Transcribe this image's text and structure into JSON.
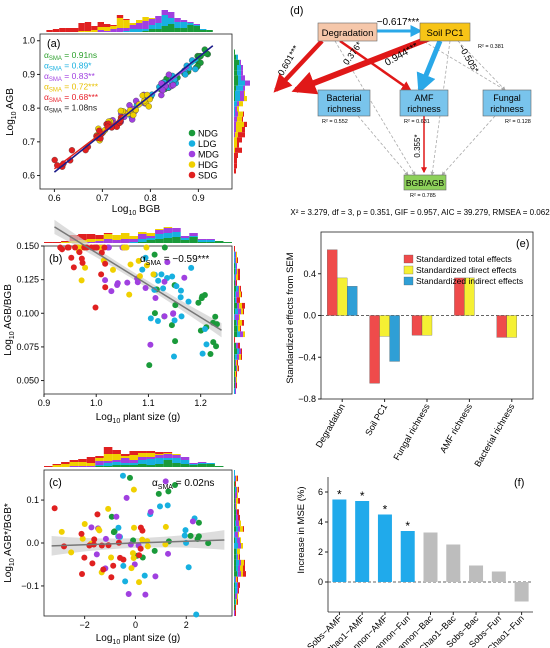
{
  "panels": {
    "a": {
      "label": "(a)",
      "xlabel_base": "Log",
      "xlabel_sub": "10",
      "xlabel_rest": " BGB",
      "ylabel_base": "Log",
      "ylabel_sub": "10",
      "ylabel_rest": " AGB",
      "xticks": [
        "0.6",
        "0.7",
        "0.8",
        "0.9"
      ],
      "yticks": [
        "0.6",
        "0.7",
        "0.8",
        "0.9",
        "1.0"
      ],
      "alphas": [
        {
          "sym": "α",
          "sub": "SMA",
          "text": " = 0.91ns",
          "color": "#2ca02c"
        },
        {
          "sym": "α",
          "sub": "SMA",
          "text": " = 0.89*",
          "color": "#17b0e0"
        },
        {
          "sym": "α",
          "sub": "SMA",
          "text": " = 0.83**",
          "color": "#a040e0"
        },
        {
          "sym": "α",
          "sub": "SMA",
          "text": " = 0.72***",
          "color": "#e8c000"
        },
        {
          "sym": "α",
          "sub": "SMA",
          "text": " = 0.68***",
          "color": "#e8202a"
        },
        {
          "sym": "α",
          "sub": "SMA",
          "text": " = 1.08ns",
          "color": "#222222"
        }
      ],
      "legend": [
        {
          "name": "NDG",
          "color": "#1a9a3a"
        },
        {
          "name": "LDG",
          "color": "#17b0e0"
        },
        {
          "name": "MDG",
          "color": "#a040e0"
        },
        {
          "name": "HDG",
          "color": "#f0d000"
        },
        {
          "name": "SDG",
          "color": "#e02020"
        }
      ]
    },
    "b": {
      "label": "(b)",
      "annotation_sym": "α",
      "annotation_sub": "SMA",
      "annotation_text": " = −0.59***",
      "xlabel_base": "Log",
      "xlabel_sub": "10",
      "xlabel_rest": " plant size (g)",
      "ylabel_base": "Log",
      "ylabel_sub": "10",
      "ylabel_rest": " AGB/BGB",
      "xticks": [
        "0.9",
        "1.0",
        "1.1",
        "1.2"
      ],
      "yticks": [
        "0.050",
        "0.075",
        "0.100",
        "0.125",
        "0.150"
      ]
    },
    "c": {
      "label": "(c)",
      "annotation_sym": "α",
      "annotation_sub": "SMA",
      "annotation_text": " = 0.02ns",
      "xlabel_base": "Log",
      "xlabel_sub": "10",
      "xlabel_rest": " plant size (g)",
      "ylabel_base": "Log",
      "ylabel_sub": "10",
      "ylabel_rest": " AGB*/BGB*",
      "xticks": [
        "−2",
        "0",
        "2"
      ],
      "yticks": [
        "−0.1",
        "0.0",
        "0.1"
      ]
    },
    "d": {
      "label": "(d)",
      "nodes": {
        "degradation": "Degradation",
        "soil_pc1": "Soil PC1",
        "soil_r2": "R² = 0.381",
        "bacterial": [
          "Bacterial",
          "richness"
        ],
        "bacterial_r2": "R² = 0.552",
        "amf": [
          "AMF",
          "richness"
        ],
        "amf_r2": "R² = 0.631",
        "fungal": [
          "Fungal",
          "richness"
        ],
        "fungal_r2": "R² = 0.128",
        "bgb_agb": "BGB/AGB",
        "bgb_r2": "R² = 0.785"
      },
      "paths": [
        {
          "from": "Degradation",
          "to": "Soil PC1",
          "label": "−0.617***"
        },
        {
          "from": "Degradation",
          "to": "Bacterial richness",
          "label": "0.601***"
        },
        {
          "from": "Degradation",
          "to": "AMF richness",
          "label": "0.376*"
        },
        {
          "from": "Soil PC1",
          "to": "AMF richness",
          "label": "0.944***"
        },
        {
          "from": "Soil PC1",
          "to": "Bacterial richness",
          "label": "−0.505*"
        },
        {
          "from": "AMF richness",
          "to": "BGB/AGB",
          "label": "0.355*"
        }
      ],
      "fit_stats": "X² = 3.279, df = 3, p = 0.351, GIF = 0.957, AIC = 39.279, RMSEA = 0.062"
    },
    "e": {
      "label": "(e)"
    },
    "f": {
      "label": "(f)"
    }
  },
  "chart_data": [
    {
      "id": "e",
      "type": "bar",
      "ylabel": "Standardized effects from SEM",
      "categories": [
        "Degradation",
        "Soil PC1",
        "Fungal richness",
        "AMF richness",
        "Bacterial richness"
      ],
      "series": [
        {
          "name": "Standardized total effects",
          "color": "#ef4b4b",
          "values": [
            0.63,
            -0.65,
            -0.19,
            0.36,
            -0.21
          ]
        },
        {
          "name": "Standardized direct effects",
          "color": "#f5f033",
          "values": [
            0.36,
            -0.2,
            -0.19,
            0.36,
            -0.21
          ]
        },
        {
          "name": "Standardized indirect effects",
          "color": "#2f9fd6",
          "values": [
            0.28,
            -0.44,
            0.0,
            0.0,
            0.0
          ]
        }
      ],
      "ylim": [
        -0.8,
        0.8
      ],
      "yticks": [
        "−0.8",
        "−0.4",
        "0.0",
        "0.4"
      ],
      "legend_position": "top-right"
    },
    {
      "id": "f",
      "type": "bar",
      "ylabel": "Increase in MSE (%)",
      "categories": [
        "Sobs−AMF",
        "Chao1−AMF",
        "Shannon−AMF",
        "Shannon−Fun",
        "Shannon−Bac",
        "Chao1−Bac",
        "Sobs−Bac",
        "Sobs−Fun",
        "Chao1−Fun"
      ],
      "values": [
        5.5,
        5.4,
        4.5,
        3.4,
        3.3,
        2.5,
        1.1,
        0.7,
        -1.3
      ],
      "significant": [
        "*",
        "*",
        "*",
        "*",
        "",
        "",
        "",
        "",
        ""
      ],
      "colors": [
        "#20aaeb",
        "#20aaeb",
        "#20aaeb",
        "#20aaeb",
        "#bdbdbd",
        "#bdbdbd",
        "#bdbdbd",
        "#bdbdbd",
        "#bdbdbd"
      ],
      "ylim": [
        -2,
        7
      ],
      "yticks": [
        "0",
        "2",
        "4",
        "6"
      ]
    }
  ]
}
